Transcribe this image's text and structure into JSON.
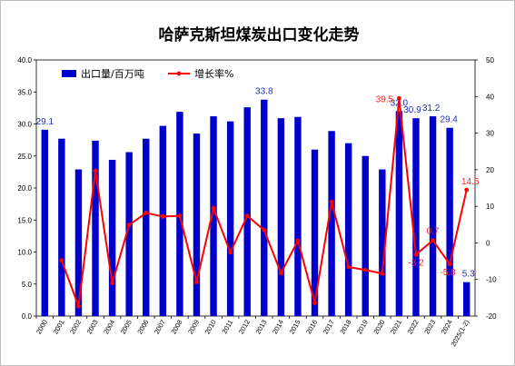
{
  "chart_data": {
    "type": "bar",
    "title": "哈萨克斯坦煤炭出口变化走势",
    "categories": [
      "2000",
      "2001",
      "2002",
      "2003",
      "2004",
      "2005",
      "2006",
      "2007",
      "2008",
      "2009",
      "2010",
      "2011",
      "2012",
      "2013",
      "2014",
      "2015",
      "2016",
      "2017",
      "2018",
      "2019",
      "2020",
      "2021",
      "2022",
      "2023",
      "2024",
      "2025(1-2)"
    ],
    "series": [
      {
        "name": "出口量/百万吨",
        "kind": "bar",
        "axis": "left",
        "color": "#0000cc",
        "values": [
          29.1,
          27.7,
          22.9,
          27.4,
          24.4,
          25.6,
          27.7,
          29.7,
          31.9,
          28.5,
          31.2,
          30.4,
          32.6,
          33.8,
          30.9,
          31.1,
          26.0,
          28.9,
          27.0,
          25.0,
          22.9,
          32.0,
          30.9,
          31.2,
          29.4,
          5.3
        ]
      },
      {
        "name": "增长率%",
        "kind": "line",
        "axis": "right",
        "color": "#ff0000",
        "values": [
          null,
          -4.8,
          -17.3,
          19.7,
          -11.0,
          4.9,
          8.2,
          7.2,
          7.4,
          -10.7,
          9.5,
          -2.6,
          7.4,
          3.5,
          -8.3,
          0.6,
          -16.4,
          11.2,
          -6.6,
          -7.4,
          -8.4,
          39.5,
          -3.2,
          0.7,
          -5.8,
          14.5
        ]
      }
    ],
    "y_left": {
      "min": 0,
      "max": 40,
      "step": 5,
      "ticks": [
        "0.0",
        "5.0",
        "10.0",
        "15.0",
        "20.0",
        "25.0",
        "30.0",
        "35.0",
        "40.0"
      ]
    },
    "y_right": {
      "min": -20,
      "max": 50,
      "step": 10,
      "ticks": [
        "-20",
        "-10",
        "0",
        "10",
        "20",
        "30",
        "40",
        "50"
      ]
    },
    "bar_labels": [
      {
        "index": 0,
        "text": "29.1"
      },
      {
        "index": 13,
        "text": "33.8"
      },
      {
        "index": 21,
        "text": "32.0"
      },
      {
        "index": 22,
        "text": "30.9"
      },
      {
        "index": 23,
        "text": "31.2"
      },
      {
        "index": 24,
        "text": "29.4"
      },
      {
        "index": 25,
        "text": "5.3"
      }
    ],
    "line_labels": [
      {
        "index": 21,
        "text": "39.5"
      },
      {
        "index": 22,
        "text": "-3.2"
      },
      {
        "index": 23,
        "text": "0.7"
      },
      {
        "index": 24,
        "text": "-5.8"
      },
      {
        "index": 25,
        "text": "14.5"
      }
    ],
    "legend_position": "top-left",
    "grid": false
  }
}
